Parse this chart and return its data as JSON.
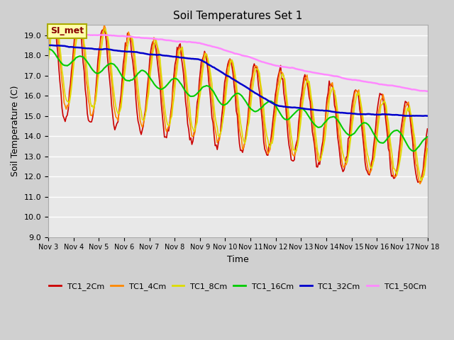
{
  "title": "Soil Temperatures Set 1",
  "xlabel": "Time",
  "ylabel": "Soil Temperature (C)",
  "ylim": [
    9.0,
    19.5
  ],
  "yticks": [
    9.0,
    10.0,
    11.0,
    12.0,
    13.0,
    14.0,
    15.0,
    16.0,
    17.0,
    18.0,
    19.0
  ],
  "legend_labels": [
    "TC1_2Cm",
    "TC1_4Cm",
    "TC1_8Cm",
    "TC1_16Cm",
    "TC1_32Cm",
    "TC1_50Cm"
  ],
  "line_colors": [
    "#cc0000",
    "#ff8800",
    "#dddd00",
    "#00cc00",
    "#0000cc",
    "#ff88ff"
  ],
  "annotation_text": "SI_met",
  "annotation_color": "#880000",
  "annotation_bg": "#ffffaa",
  "n_points": 360,
  "x_start": 3,
  "x_end": 18,
  "xtick_positions": [
    3,
    4,
    5,
    6,
    7,
    8,
    9,
    10,
    11,
    12,
    13,
    14,
    15,
    16,
    17,
    18
  ],
  "xtick_labels": [
    "Nov 3",
    "Nov 4",
    "Nov 5",
    "Nov 6",
    "Nov 7",
    "Nov 8",
    "Nov 9",
    "Nov 10",
    "Nov 11",
    "Nov 12",
    "Nov 13",
    "Nov 14",
    "Nov 15",
    "Nov 16",
    "Nov 17",
    "Nov 18"
  ]
}
